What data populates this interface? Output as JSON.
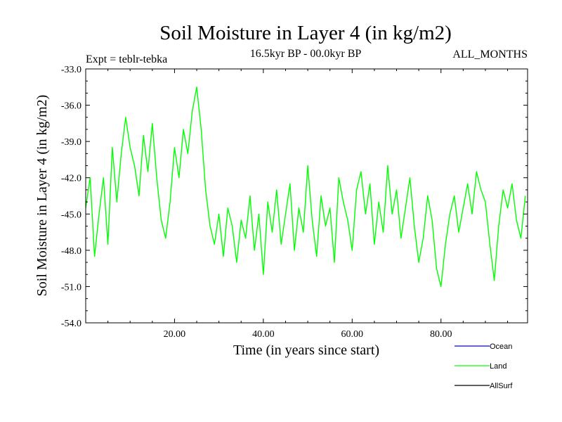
{
  "chart_data": {
    "type": "line",
    "title": "Soil Moisture in Layer 4 (in kg/m2)",
    "subtitle_left": "Expt = teblr-tebka",
    "subtitle_center": "16.5kyr BP - 00.0kyr BP",
    "subtitle_right": "ALL_MONTHS",
    "xlabel": "Time (in years since start)",
    "ylabel": "Soil Moisture in Layer 4 (in kg/m2)",
    "xlim": [
      0,
      99.5
    ],
    "ylim": [
      -54.0,
      -33.0
    ],
    "x_ticks": [
      20,
      40,
      60,
      80
    ],
    "x_tick_labels": [
      "20.00",
      "40.00",
      "60.00",
      "80.00"
    ],
    "y_ticks": [
      -54,
      -51,
      -48,
      -45,
      -42,
      -39,
      -36,
      -33
    ],
    "y_tick_labels": [
      "-54.0",
      "-51.0",
      "-48.0",
      "-45.0",
      "-42.0",
      "-39.0",
      "-36.0",
      "-33.0"
    ],
    "legend": [
      {
        "name": "Ocean",
        "color": "#0000ff"
      },
      {
        "name": "Land",
        "color": "#00ff00"
      },
      {
        "name": "AllSurf",
        "color": "#000000"
      }
    ],
    "series": [
      {
        "name": "Land",
        "color": "#00ff00",
        "x": [
          0,
          1,
          2,
          3,
          4,
          5,
          6,
          7,
          8,
          9,
          10,
          11,
          12,
          13,
          14,
          15,
          16,
          17,
          18,
          19,
          20,
          21,
          22,
          23,
          24,
          25,
          26,
          27,
          28,
          29,
          30,
          31,
          32,
          33,
          34,
          35,
          36,
          37,
          38,
          39,
          40,
          41,
          42,
          43,
          44,
          45,
          46,
          47,
          48,
          49,
          50,
          51,
          52,
          53,
          54,
          55,
          56,
          57,
          58,
          59,
          60,
          61,
          62,
          63,
          64,
          65,
          66,
          67,
          68,
          69,
          70,
          71,
          72,
          73,
          74,
          75,
          76,
          77,
          78,
          79,
          80,
          81,
          82,
          83,
          84,
          85,
          86,
          87,
          88,
          89,
          90,
          91,
          92,
          93,
          94,
          95,
          96,
          97,
          98,
          99
        ],
        "values": [
          -44.5,
          -42.0,
          -48.5,
          -45.0,
          -42.0,
          -47.5,
          -39.5,
          -44.0,
          -40.0,
          -37.0,
          -39.5,
          -41.0,
          -43.5,
          -38.5,
          -41.5,
          -37.5,
          -42.0,
          -45.5,
          -47.0,
          -44.0,
          -39.5,
          -42.0,
          -38.0,
          -40.0,
          -36.5,
          -34.5,
          -38.0,
          -43.0,
          -46.0,
          -47.5,
          -45.0,
          -48.5,
          -44.5,
          -46.0,
          -49.0,
          -45.5,
          -47.0,
          -43.5,
          -48.0,
          -45.0,
          -50.0,
          -44.0,
          -46.5,
          -43.0,
          -47.5,
          -45.0,
          -42.5,
          -48.0,
          -44.5,
          -46.5,
          -41.0,
          -45.5,
          -48.5,
          -43.5,
          -46.0,
          -44.5,
          -49.0,
          -42.0,
          -44.0,
          -45.5,
          -48.0,
          -43.0,
          -41.5,
          -45.0,
          -42.5,
          -47.5,
          -44.0,
          -46.5,
          -41.0,
          -45.0,
          -43.0,
          -47.0,
          -44.5,
          -42.0,
          -46.0,
          -49.0,
          -47.0,
          -43.5,
          -45.5,
          -49.5,
          -51.0,
          -47.5,
          -45.0,
          -43.5,
          -46.5,
          -44.5,
          -42.5,
          -45.0,
          -41.5,
          -43.0,
          -44.0,
          -47.5,
          -50.5,
          -46.0,
          -43.0,
          -44.5,
          -42.5,
          -45.5,
          -47.0,
          -43.5
        ]
      }
    ]
  }
}
